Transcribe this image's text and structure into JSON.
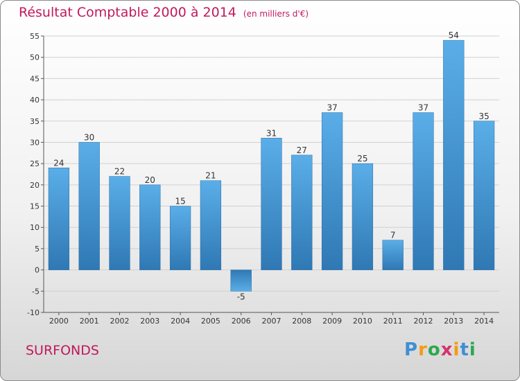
{
  "title": "Résultat Comptable 2000 à 2014",
  "subtitle": "(en milliers d'€)",
  "place": "SURFONDS",
  "logo": {
    "letters": [
      "P",
      "r",
      "o",
      "x",
      "i",
      "t",
      "i"
    ],
    "colors": [
      "#3f8fd2",
      "#f39c12",
      "#2ea84f",
      "#d6336c",
      "#f39c12",
      "#3f8fd2",
      "#2ea84f"
    ]
  },
  "colors": {
    "title": "#c2185b",
    "bar_light": "#5aaee8",
    "bar_dark": "#2f78b4",
    "grid": "#d0d0d0",
    "axis": "#555555",
    "label": "#333333"
  },
  "chart_data": {
    "type": "bar",
    "title": "Résultat Comptable 2000 à 2014",
    "xlabel": "",
    "ylabel": "",
    "grid": true,
    "ylim": [
      -10,
      55
    ],
    "yticks": [
      -10,
      -5,
      0,
      5,
      10,
      15,
      20,
      25,
      30,
      35,
      40,
      45,
      50,
      55
    ],
    "categories": [
      "2000",
      "2001",
      "2002",
      "2003",
      "2004",
      "2005",
      "2006",
      "2007",
      "2008",
      "2009",
      "2010",
      "2011",
      "2012",
      "2013",
      "2014"
    ],
    "values": [
      24,
      30,
      22,
      20,
      15,
      21,
      -5,
      31,
      27,
      37,
      25,
      7,
      37,
      54,
      35
    ]
  }
}
